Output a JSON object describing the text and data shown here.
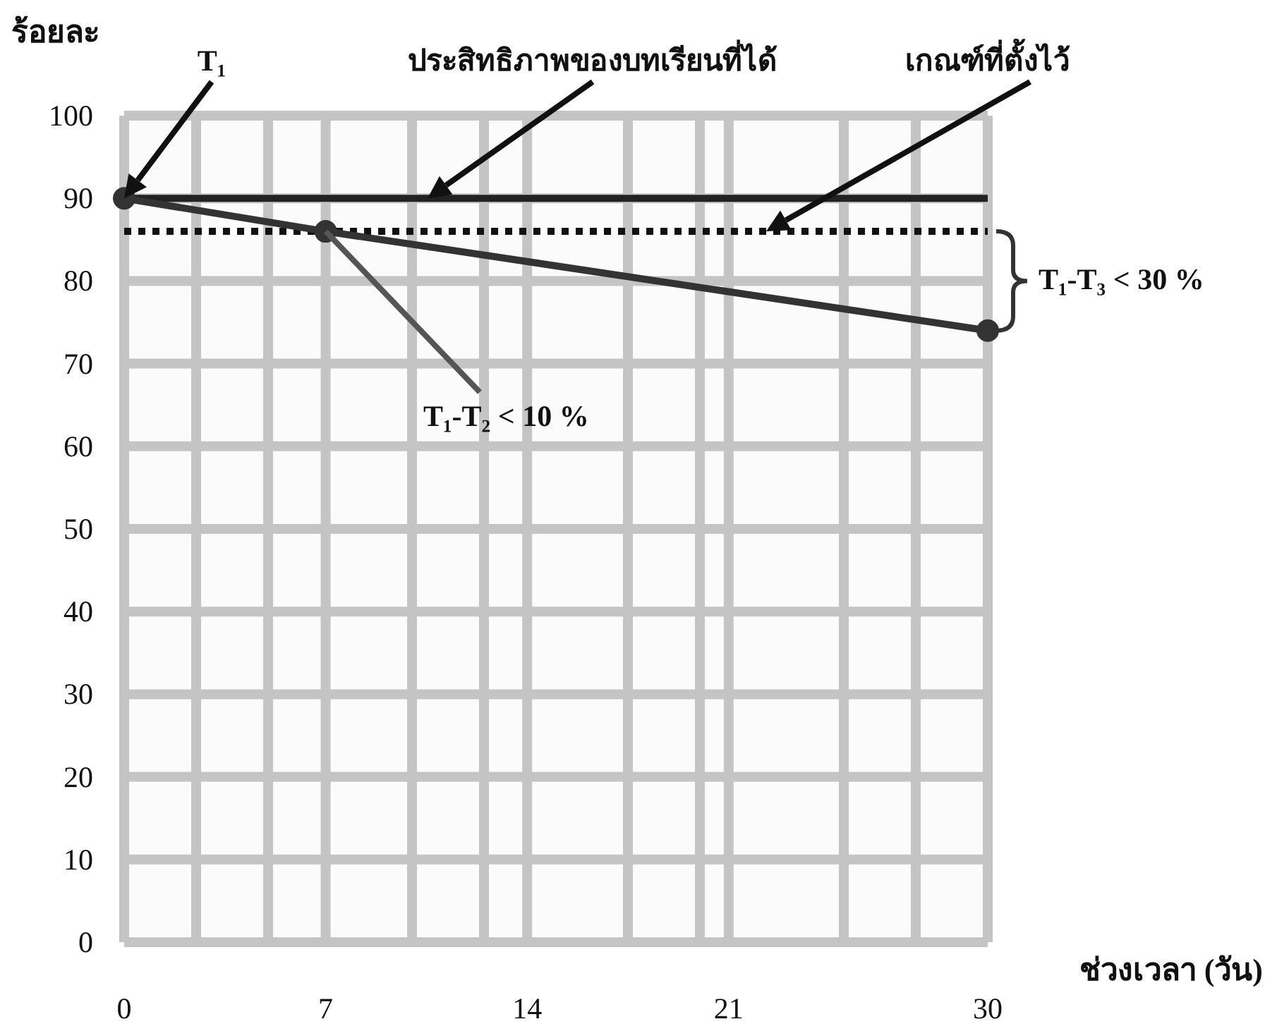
{
  "chart_data": {
    "type": "line",
    "xlabel": "ช่วงเวลา (วัน)",
    "ylabel": "ร้อยละ",
    "xlim": [
      0,
      30
    ],
    "xticks": [
      0,
      {
        "value": 2.5,
        "label": null
      },
      {
        "value": 5,
        "label": null
      },
      7,
      {
        "value": 10,
        "label": null
      },
      {
        "value": 12.5,
        "label": null
      },
      14,
      {
        "value": 17.5,
        "label": null
      },
      {
        "value": 20,
        "label": null
      },
      21,
      {
        "value": 25,
        "label": null
      },
      {
        "value": 27.5,
        "label": null
      },
      30
    ],
    "ylim": [
      0,
      100
    ],
    "yticks": [
      0,
      10,
      20,
      30,
      40,
      50,
      60,
      70,
      80,
      90,
      100
    ],
    "grid": true,
    "series": [
      {
        "color": "#222222",
        "x": [
          0,
          30
        ],
        "values": [
          90,
          90
        ],
        "marker": "none",
        "line_style": "solid"
      },
      {
        "color": "#333333",
        "x": [
          0,
          7,
          30
        ],
        "values": [
          90,
          86,
          74
        ],
        "marker": "circle",
        "line_style": "solid"
      }
    ],
    "ref_lines": [
      {
        "axis": "y",
        "value": 86,
        "color": "#111111",
        "line_style": "dotted"
      }
    ],
    "annotations": [
      "T₁",
      "ประสิทธิภาพของบทเรียนที่ได้",
      "เกณฑ์ที่ตั้งไว้",
      {
        "text": "T₁-T₂ < 10 %",
        "x": 7,
        "y": 86
      },
      "T₁-T₃ < 30 %"
    ]
  }
}
